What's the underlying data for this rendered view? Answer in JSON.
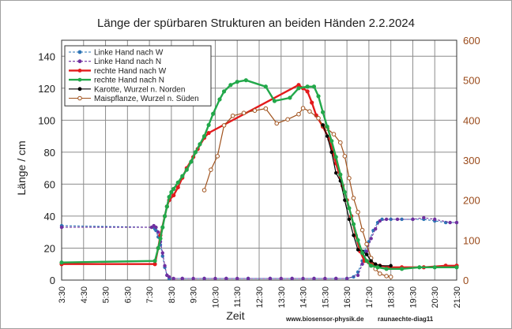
{
  "chart_data": {
    "type": "line",
    "title": "Länge der spürbaren Strukturen an beiden Händen 2.2.2024",
    "xlabel": "Zeit",
    "ylabel": "Länge / cm",
    "x_ticks": [
      "3:30",
      "4:30",
      "5:30",
      "6:30",
      "7:30",
      "8:30",
      "9:30",
      "10:30",
      "11:30",
      "12:30",
      "13:30",
      "14:30",
      "15:30",
      "16:30",
      "17:30",
      "18:30",
      "19:30",
      "20:30",
      "21:30"
    ],
    "x_range_hours": [
      3.5,
      21.5
    ],
    "ylim_left": [
      0,
      150
    ],
    "y_ticks_left": [
      0,
      20,
      40,
      60,
      80,
      100,
      120,
      140
    ],
    "ylim_right": [
      0,
      600
    ],
    "y_ticks_right": [
      0,
      100,
      200,
      300,
      400,
      500,
      600
    ],
    "grid": true,
    "legend_position": "top-left",
    "footer_left": "www.biosensor-physik.de",
    "footer_right": "raunaechte-diag11",
    "colors": {
      "linke_w": "#2e75b6",
      "linke_n": "#7030a0",
      "rechte_w": "#e31a1c",
      "rechte_n": "#22a84a",
      "karotte": "#000000",
      "mais": "#a0521d",
      "right_axis": "#9a4a1a"
    },
    "series": [
      {
        "name": "Linke Hand nach W",
        "axis": "left",
        "style": "dashed",
        "marker": "dot",
        "color_key": "linke_w",
        "points": [
          [
            3.5,
            34
          ],
          [
            7.7,
            33
          ],
          [
            7.75,
            32
          ],
          [
            7.8,
            31
          ],
          [
            7.9,
            27
          ],
          [
            8.0,
            22
          ],
          [
            8.1,
            15
          ],
          [
            8.2,
            8
          ],
          [
            8.3,
            3
          ],
          [
            8.4,
            1
          ],
          [
            9.0,
            1
          ],
          [
            10.0,
            1
          ],
          [
            11.0,
            1
          ],
          [
            12.0,
            1
          ],
          [
            13.0,
            1
          ],
          [
            14.0,
            1
          ],
          [
            15.0,
            1
          ],
          [
            16.0,
            1
          ],
          [
            16.5,
            1
          ],
          [
            16.8,
            2
          ],
          [
            17.0,
            5
          ],
          [
            17.2,
            12
          ],
          [
            17.3,
            18
          ],
          [
            17.5,
            24
          ],
          [
            17.7,
            31
          ],
          [
            17.9,
            36
          ],
          [
            18.1,
            38
          ],
          [
            18.5,
            38
          ],
          [
            19.0,
            38
          ],
          [
            19.5,
            38
          ],
          [
            20.0,
            38
          ],
          [
            20.5,
            37
          ],
          [
            21.0,
            36
          ],
          [
            21.5,
            36
          ]
        ]
      },
      {
        "name": "Linke Hand nach N",
        "axis": "left",
        "style": "dashed",
        "marker": "dot",
        "color_key": "linke_n",
        "points": [
          [
            3.5,
            33
          ],
          [
            7.6,
            33
          ],
          [
            7.7,
            34
          ],
          [
            7.8,
            33
          ],
          [
            7.9,
            30
          ],
          [
            8.0,
            24
          ],
          [
            8.1,
            17
          ],
          [
            8.2,
            9
          ],
          [
            8.3,
            3
          ],
          [
            8.4,
            2
          ],
          [
            8.6,
            1
          ],
          [
            9.0,
            1
          ],
          [
            9.5,
            1
          ],
          [
            10.0,
            1
          ],
          [
            10.5,
            1
          ],
          [
            11.0,
            1
          ],
          [
            11.5,
            1
          ],
          [
            12.0,
            1
          ],
          [
            13.0,
            1
          ],
          [
            13.5,
            1
          ],
          [
            14.0,
            1
          ],
          [
            14.5,
            1
          ],
          [
            15.0,
            1
          ],
          [
            15.5,
            1
          ],
          [
            16.0,
            1
          ],
          [
            16.5,
            1
          ],
          [
            17.0,
            3
          ],
          [
            17.2,
            10
          ],
          [
            17.4,
            18
          ],
          [
            17.6,
            26
          ],
          [
            17.8,
            32
          ],
          [
            18.0,
            37
          ],
          [
            18.3,
            38
          ],
          [
            18.8,
            38
          ],
          [
            19.5,
            38
          ],
          [
            20.0,
            39
          ],
          [
            20.5,
            38
          ],
          [
            21.2,
            36
          ],
          [
            21.5,
            36
          ]
        ]
      },
      {
        "name": "rechte Hand nach W",
        "axis": "left",
        "style": "solid-thick",
        "marker": "dot",
        "color_key": "rechte_w",
        "points": [
          [
            3.5,
            10
          ],
          [
            7.75,
            10
          ],
          [
            7.9,
            20
          ],
          [
            8.0,
            28
          ],
          [
            8.2,
            40
          ],
          [
            8.3,
            46
          ],
          [
            8.4,
            50
          ],
          [
            8.6,
            53
          ],
          [
            8.8,
            58
          ],
          [
            9.0,
            64
          ],
          [
            9.2,
            70
          ],
          [
            9.5,
            77
          ],
          [
            9.7,
            82
          ],
          [
            10.0,
            89
          ],
          [
            10.2,
            92
          ],
          [
            14.3,
            122
          ],
          [
            14.5,
            120
          ],
          [
            14.7,
            118
          ],
          [
            14.9,
            111
          ],
          [
            15.1,
            103
          ],
          [
            15.4,
            96
          ],
          [
            15.7,
            88
          ],
          [
            16.0,
            73
          ],
          [
            16.3,
            59
          ],
          [
            16.5,
            50
          ],
          [
            16.7,
            40
          ],
          [
            16.9,
            28
          ],
          [
            17.1,
            18
          ],
          [
            17.3,
            12
          ],
          [
            17.5,
            11
          ],
          [
            17.7,
            10
          ],
          [
            18.0,
            9
          ],
          [
            18.5,
            8
          ],
          [
            19.0,
            8
          ],
          [
            20.0,
            8
          ],
          [
            21.0,
            9
          ],
          [
            21.5,
            9
          ]
        ]
      },
      {
        "name": "rechte Hand nach N",
        "axis": "left",
        "style": "solid-thick",
        "marker": "dot",
        "color_key": "rechte_n",
        "points": [
          [
            3.5,
            11
          ],
          [
            7.75,
            12
          ],
          [
            7.9,
            20
          ],
          [
            8.0,
            26
          ],
          [
            8.1,
            33
          ],
          [
            8.2,
            40
          ],
          [
            8.3,
            46
          ],
          [
            8.4,
            52
          ],
          [
            8.5,
            55
          ],
          [
            8.6,
            57
          ],
          [
            8.8,
            61
          ],
          [
            9.0,
            65
          ],
          [
            9.2,
            69
          ],
          [
            9.4,
            74
          ],
          [
            9.6,
            80
          ],
          [
            9.8,
            85
          ],
          [
            10.0,
            90
          ],
          [
            10.2,
            97
          ],
          [
            10.4,
            104
          ],
          [
            10.7,
            113
          ],
          [
            10.9,
            118
          ],
          [
            11.2,
            122
          ],
          [
            11.5,
            124
          ],
          [
            11.9,
            125
          ],
          [
            12.8,
            121
          ],
          [
            13.2,
            112
          ],
          [
            13.9,
            114
          ],
          [
            14.3,
            120
          ],
          [
            14.7,
            121
          ],
          [
            15.0,
            121
          ],
          [
            15.2,
            115
          ],
          [
            15.4,
            105
          ],
          [
            15.6,
            96
          ],
          [
            15.8,
            87
          ],
          [
            16.0,
            77
          ],
          [
            16.2,
            66
          ],
          [
            16.4,
            55
          ],
          [
            16.6,
            45
          ],
          [
            16.8,
            35
          ],
          [
            17.0,
            25
          ],
          [
            17.2,
            17
          ],
          [
            17.4,
            12
          ],
          [
            17.6,
            9
          ],
          [
            17.9,
            8
          ],
          [
            18.3,
            7
          ],
          [
            19.0,
            7
          ],
          [
            19.8,
            8
          ],
          [
            20.5,
            8
          ],
          [
            21.5,
            8
          ]
        ]
      },
      {
        "name": "Karotte, Wurzel n. Norden",
        "axis": "left",
        "style": "solid",
        "marker": "dot",
        "color_key": "karotte",
        "points": [
          [
            15.4,
            97
          ],
          [
            15.6,
            90
          ],
          [
            15.8,
            80
          ],
          [
            16.0,
            67
          ],
          [
            16.2,
            62
          ],
          [
            16.4,
            50
          ],
          [
            16.6,
            38
          ],
          [
            16.8,
            28
          ],
          [
            17.0,
            19
          ],
          [
            17.2,
            18
          ],
          [
            17.4,
            16
          ],
          [
            17.6,
            12
          ],
          [
            17.8,
            10
          ],
          [
            18.0,
            9
          ],
          [
            18.5,
            9
          ]
        ]
      },
      {
        "name": "Maispflanze, Wurzel  n. Süden",
        "axis": "right",
        "style": "solid",
        "marker": "open-circle",
        "color_key": "mais",
        "points": [
          [
            10.0,
            225
          ],
          [
            10.3,
            276
          ],
          [
            10.6,
            310
          ],
          [
            10.9,
            387
          ],
          [
            11.3,
            411
          ],
          [
            11.8,
            418
          ],
          [
            12.3,
            424
          ],
          [
            12.8,
            429
          ],
          [
            13.3,
            392
          ],
          [
            13.8,
            402
          ],
          [
            14.3,
            415
          ],
          [
            14.5,
            430
          ],
          [
            14.8,
            422
          ],
          [
            15.2,
            405
          ],
          [
            15.4,
            387
          ],
          [
            15.6,
            379
          ],
          [
            15.9,
            365
          ],
          [
            16.2,
            344
          ],
          [
            16.4,
            310
          ],
          [
            16.6,
            255
          ],
          [
            16.8,
            205
          ],
          [
            17.0,
            170
          ],
          [
            17.2,
            125
          ],
          [
            17.4,
            90
          ],
          [
            17.6,
            55
          ],
          [
            17.8,
            28
          ],
          [
            18.0,
            16
          ],
          [
            18.3,
            10
          ],
          [
            18.5,
            8
          ]
        ]
      }
    ]
  }
}
